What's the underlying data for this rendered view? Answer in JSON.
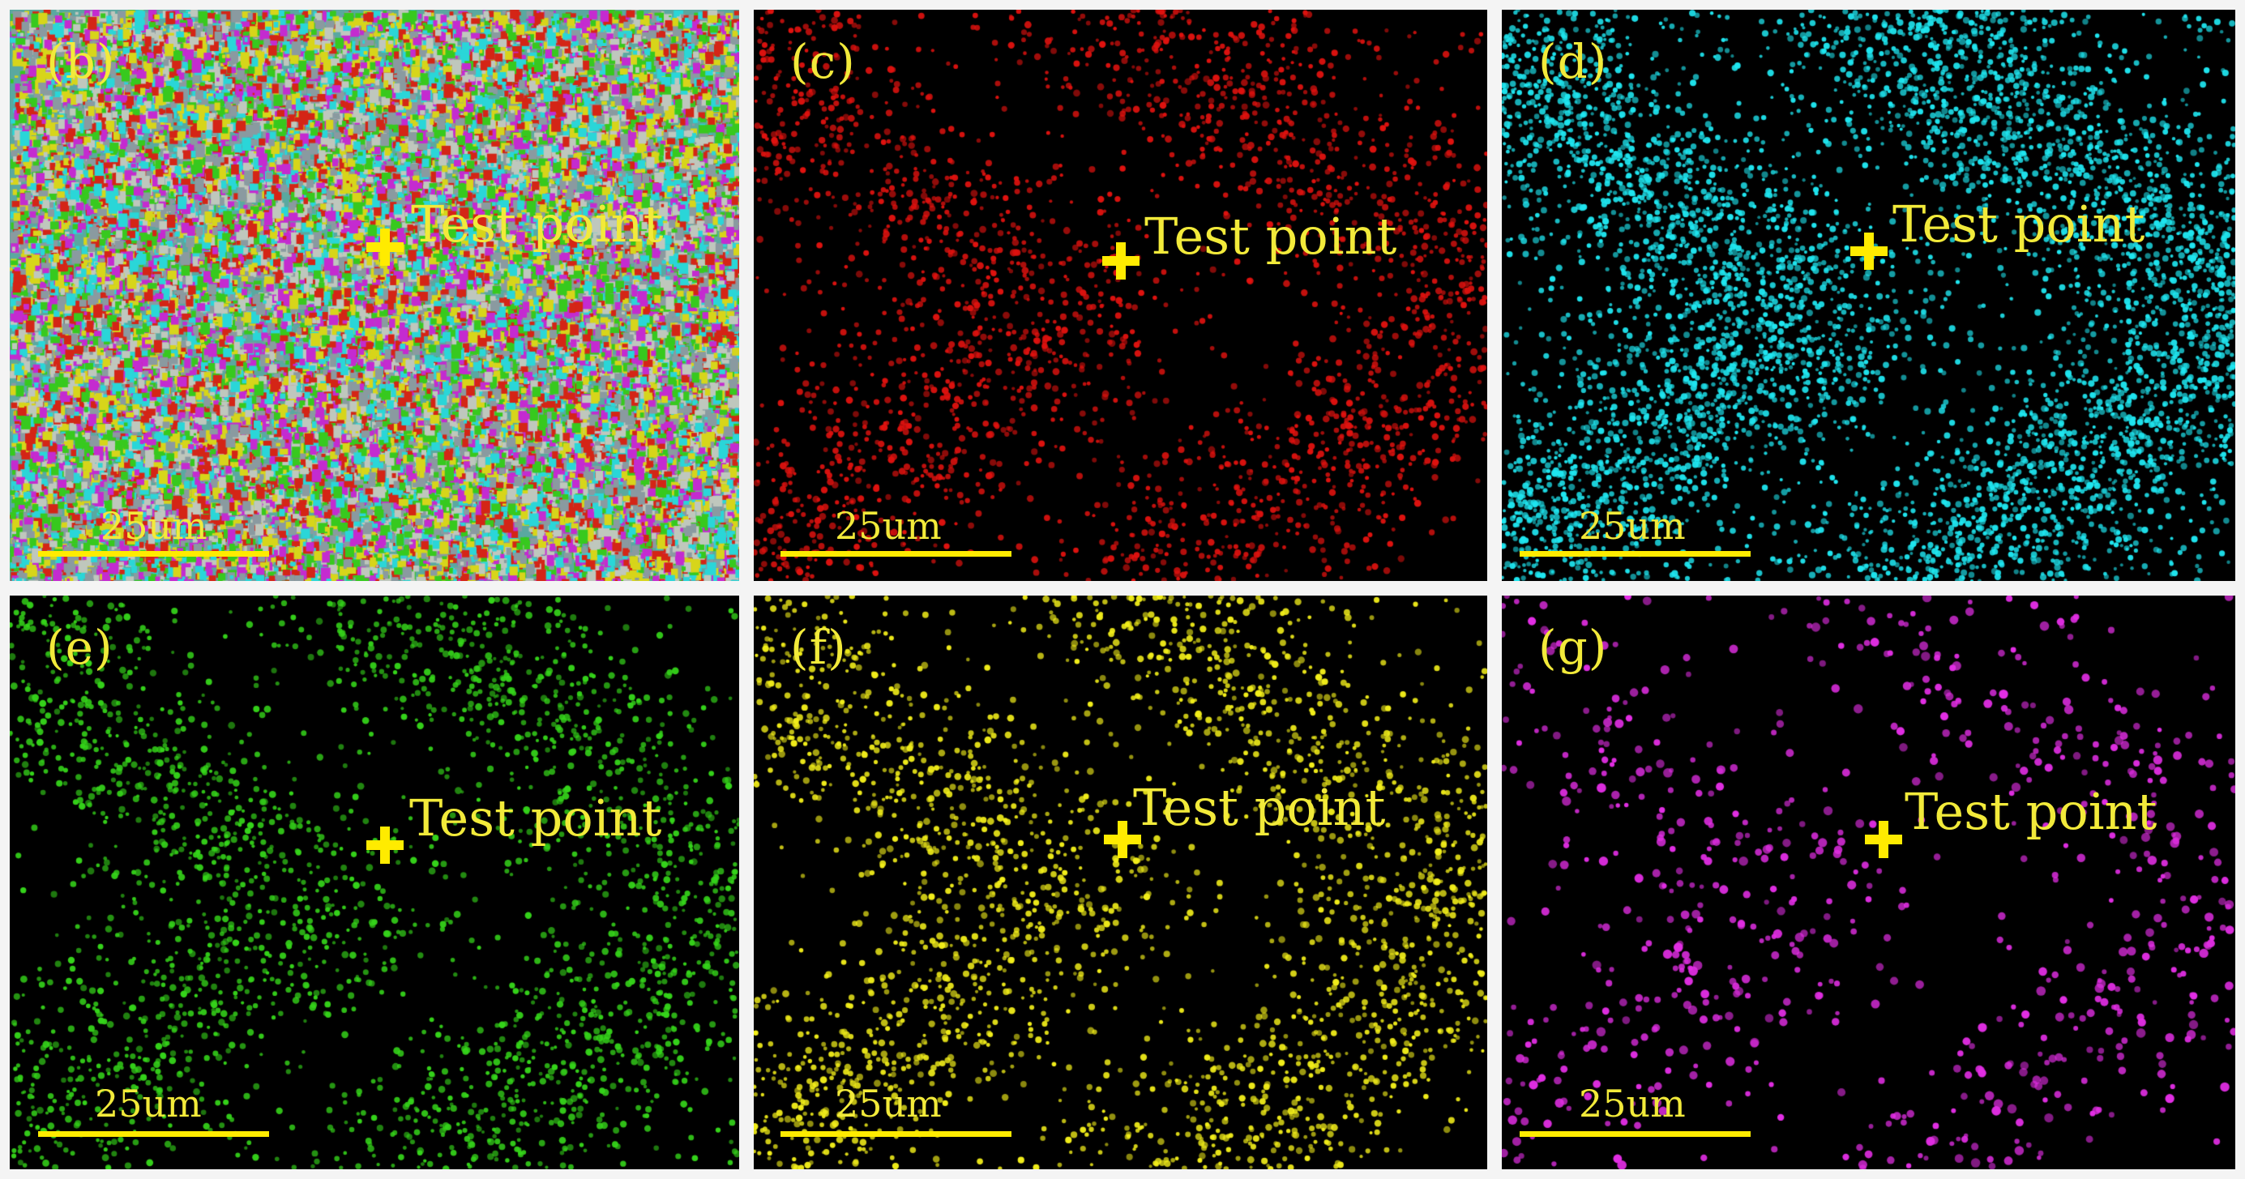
{
  "marker_label": "Test point",
  "scale_label": "25um",
  "panels": [
    {
      "label": "(b)",
      "color": "#c8c8c8",
      "style": "composite"
    },
    {
      "label": "(c)",
      "color": "#e0120f",
      "style": "dots"
    },
    {
      "label": "(d)",
      "color": "#1fe6f0",
      "style": "dense"
    },
    {
      "label": "(e)",
      "color": "#35d41a",
      "style": "dots"
    },
    {
      "label": "(f)",
      "color": "#f2ee1a",
      "style": "dots"
    },
    {
      "label": "(g)",
      "color": "#e22ee4",
      "style": "sparse"
    }
  ],
  "composite_colors": [
    "#2ad6d8",
    "#37c91e",
    "#d7d51a",
    "#d42516",
    "#c42bd0",
    "#8a9aa0",
    "#bfc7bd"
  ]
}
